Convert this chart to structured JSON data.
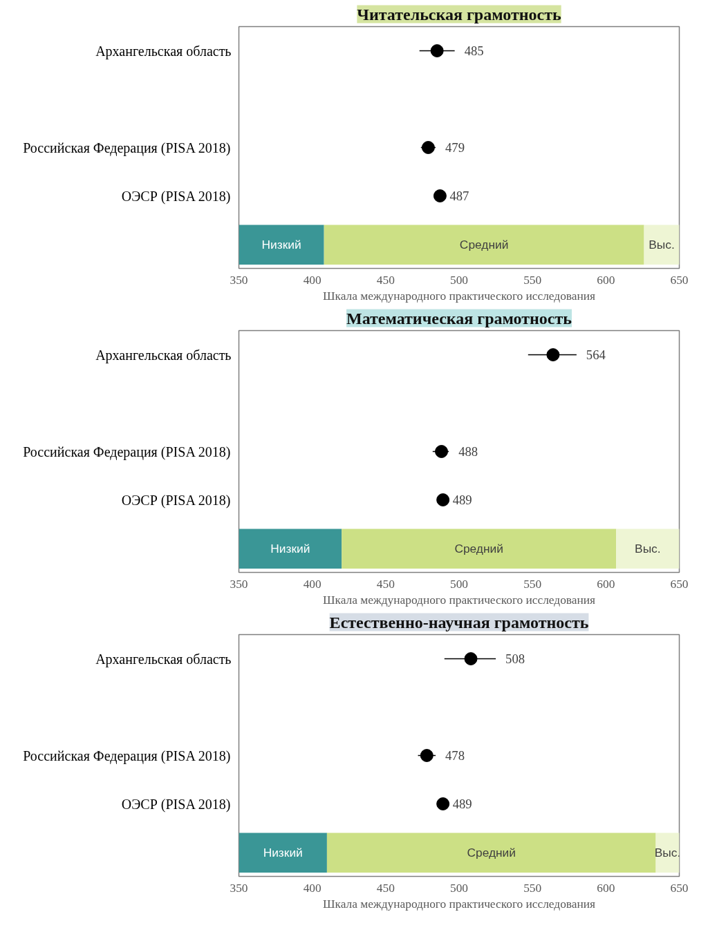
{
  "chart_data": [
    {
      "type": "scatter",
      "title": "Читательская грамотность",
      "xlabel": "Шкала международного практического исследования",
      "categories": [
        "Архангельская область",
        null,
        "Российская Федерация (PISA 2018)",
        "ОЭСР (PISA 2018)"
      ],
      "orientation": "horizontal",
      "xlim": [
        350,
        650
      ],
      "xticks": [
        350,
        400,
        450,
        500,
        550,
        600,
        650
      ],
      "grid": false,
      "marker": "circle",
      "data_labels": true,
      "series": [
        {
          "color": "#000000",
          "values": [
            485,
            null,
            479,
            487
          ],
          "errors": [
            [
              473,
              497
            ],
            null,
            [
              474,
              484
            ],
            null
          ]
        }
      ],
      "bands": [
        {
          "axis": "x",
          "from": 350,
          "to": 408,
          "label": "Низкий",
          "color": "#3a9696"
        },
        {
          "axis": "x",
          "from": 408,
          "to": 626,
          "label": "Средний",
          "color": "#cce085"
        },
        {
          "axis": "x",
          "from": 626,
          "to": 650,
          "label": "Выс.",
          "color": "#eef5d4"
        }
      ]
    },
    {
      "type": "scatter",
      "title": "Математическая грамотность",
      "xlabel": "Шкала международного практического исследования",
      "categories": [
        "Архангельская область",
        null,
        "Российская Федерация (PISA 2018)",
        "ОЭСР (PISA 2018)"
      ],
      "orientation": "horizontal",
      "xlim": [
        350,
        650
      ],
      "xticks": [
        350,
        400,
        450,
        500,
        550,
        600,
        650
      ],
      "grid": false,
      "marker": "circle",
      "data_labels": true,
      "series": [
        {
          "color": "#000000",
          "values": [
            564,
            null,
            488,
            489
          ],
          "errors": [
            [
              547,
              580
            ],
            null,
            [
              482,
              493
            ],
            null
          ]
        }
      ],
      "bands": [
        {
          "axis": "x",
          "from": 350,
          "to": 420,
          "label": "Низкий",
          "color": "#3a9696"
        },
        {
          "axis": "x",
          "from": 420,
          "to": 607,
          "label": "Средний",
          "color": "#cce085"
        },
        {
          "axis": "x",
          "from": 607,
          "to": 650,
          "label": "Выс.",
          "color": "#eef5d4"
        }
      ]
    },
    {
      "type": "scatter",
      "title": "Естественно-научная грамотность",
      "xlabel": "Шкала международного практического исследования",
      "categories": [
        "Архангельская область",
        null,
        "Российская Федерация (PISA 2018)",
        "ОЭСР (PISA 2018)"
      ],
      "orientation": "horizontal",
      "xlim": [
        350,
        650
      ],
      "xticks": [
        350,
        400,
        450,
        500,
        550,
        600,
        650
      ],
      "grid": false,
      "marker": "circle",
      "data_labels": true,
      "series": [
        {
          "color": "#000000",
          "values": [
            508,
            null,
            478,
            489
          ],
          "errors": [
            [
              490,
              525
            ],
            null,
            [
              472,
              484
            ],
            null
          ]
        }
      ],
      "bands": [
        {
          "axis": "x",
          "from": 350,
          "to": 410,
          "label": "Низкий",
          "color": "#3a9696"
        },
        {
          "axis": "x",
          "from": 410,
          "to": 634,
          "label": "Средний",
          "color": "#cce085"
        },
        {
          "axis": "x",
          "from": 634,
          "to": 650,
          "label": "Выс.",
          "color": "#eef5d4"
        }
      ]
    }
  ]
}
